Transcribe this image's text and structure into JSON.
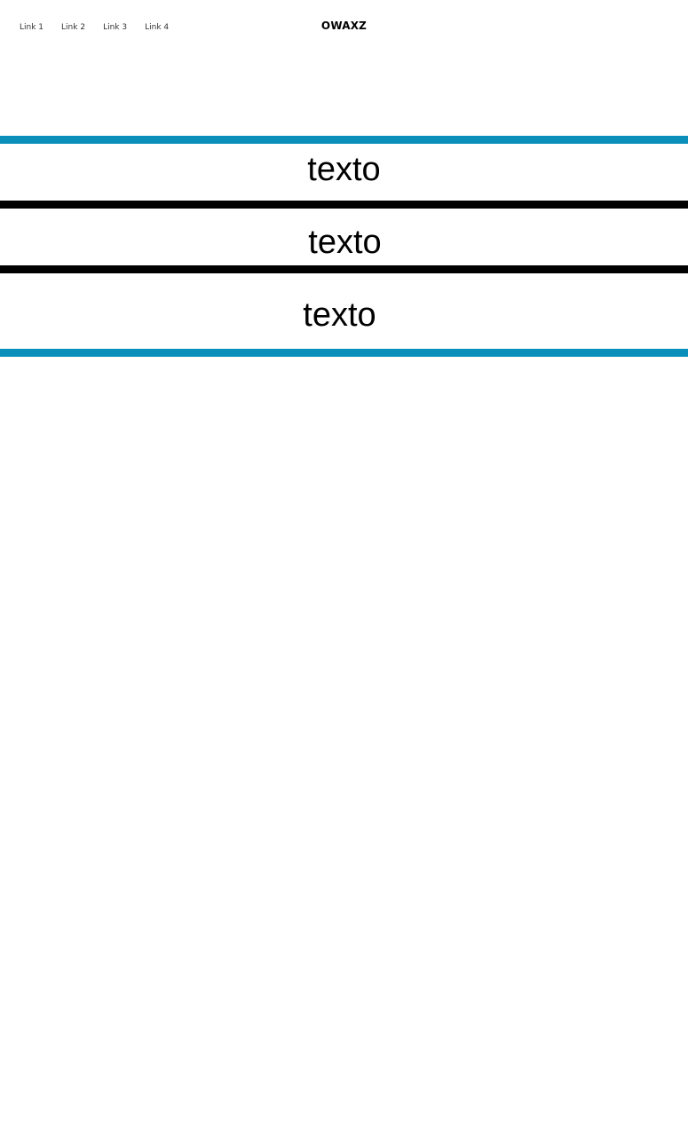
{
  "nav": {
    "links": [
      "Link 1",
      "Link 2",
      "Link 3",
      "Link 4"
    ],
    "brand": "OWAXZ"
  },
  "bands": [
    {
      "text": "texto"
    },
    {
      "text": "texto"
    },
    {
      "text": "texto"
    }
  ],
  "colors": {
    "accent": "#0a8fba",
    "divider": "#000000",
    "background": "#ffffff"
  }
}
